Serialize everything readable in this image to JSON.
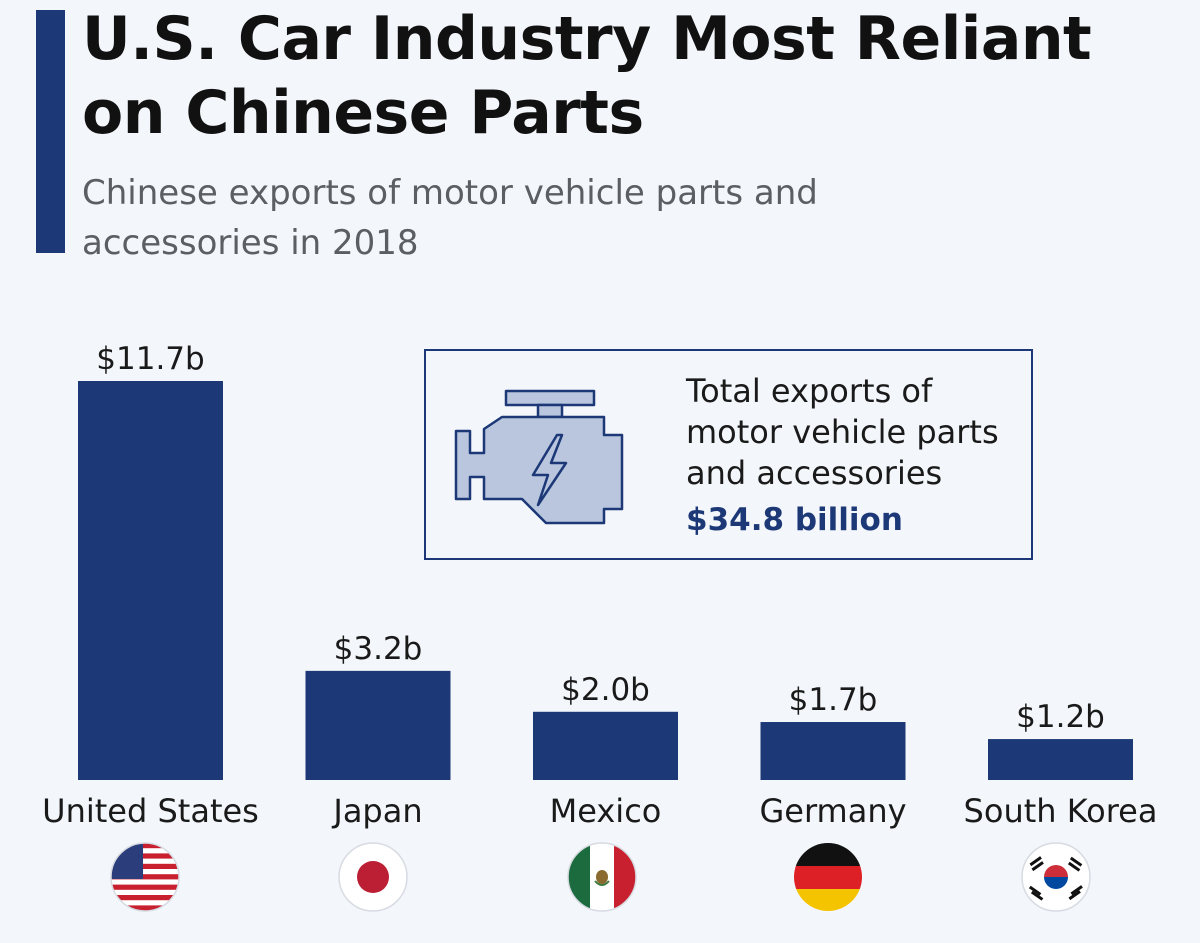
{
  "header": {
    "title": "U.S. Car Industry Most Reliant on Chinese Parts",
    "subtitle": "Chinese exports of motor vehicle parts and accessories in 2018"
  },
  "info_box": {
    "text": "Total exports of motor vehicle parts and accessories",
    "value": "$34.8 billion",
    "icon": "engine-icon"
  },
  "colors": {
    "accent": "#1c3877",
    "bar": "#1c3877",
    "icon_fill": "#b9c6de",
    "background": "#f3f6fa"
  },
  "chart_data": {
    "type": "bar",
    "title": "U.S. Car Industry Most Reliant on Chinese Parts",
    "subtitle": "Chinese exports of motor vehicle parts and accessories in 2018",
    "categories": [
      "United States",
      "Japan",
      "Mexico",
      "Germany",
      "South Korea"
    ],
    "values": [
      11.7,
      3.2,
      2.0,
      1.7,
      1.2
    ],
    "value_labels": [
      "$11.7b",
      "$3.2b",
      "$2.0b",
      "$1.7b",
      "$1.2b"
    ],
    "flags": [
      "us-flag-icon",
      "japan-flag-icon",
      "mexico-flag-icon",
      "germany-flag-icon",
      "south-korea-flag-icon"
    ],
    "unit": "billion USD",
    "xlabel": "",
    "ylabel": "",
    "ylim": [
      0,
      11.7
    ],
    "grid": false
  }
}
